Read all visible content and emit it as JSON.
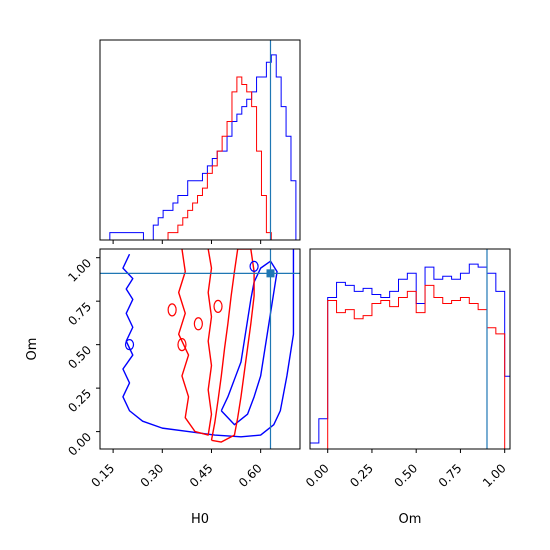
{
  "chart_data": [
    {
      "panel": "H0 marginal (top-left)",
      "type": "histogram-step",
      "xlim": [
        0.11,
        0.72
      ],
      "x_bin_centers": [
        0.25,
        0.265,
        0.28,
        0.295,
        0.31,
        0.325,
        0.34,
        0.355,
        0.37,
        0.385,
        0.4,
        0.415,
        0.43,
        0.445,
        0.46,
        0.475,
        0.49,
        0.505,
        0.52,
        0.535,
        0.55,
        0.565,
        0.58,
        0.595,
        0.61,
        0.625,
        0.64,
        0.655,
        0.67,
        0.685,
        0.7
      ],
      "series": [
        {
          "color": "#0000ff",
          "counts": [
            0,
            0,
            2,
            3,
            4,
            4,
            5,
            6,
            6,
            8,
            8,
            8,
            9,
            10,
            11,
            12,
            12,
            14,
            16,
            17,
            18,
            19,
            20,
            22,
            22,
            24,
            25,
            22,
            18,
            14,
            8
          ],
          "start_x": 0.14,
          "start_x_note": "blue histogram begins near 0.14 with small counts"
        },
        {
          "color": "#ff0000",
          "counts": [
            0,
            0,
            0,
            0,
            0,
            1,
            1,
            2,
            3,
            4,
            5,
            6,
            7,
            9,
            10,
            12,
            14,
            16,
            20,
            22,
            21,
            20,
            18,
            12,
            6,
            1,
            0,
            0,
            0,
            0,
            0
          ]
        }
      ],
      "truth_line": {
        "x": 0.63,
        "color": "#1f77b4"
      }
    },
    {
      "panel": "H0 vs Om joint (bottom-left)",
      "type": "contour",
      "xlim": [
        0.11,
        0.72
      ],
      "ylim": [
        -0.1,
        1.05
      ],
      "xticks": [
        "0.15",
        "0.30",
        "0.45",
        "0.60"
      ],
      "xtick_values": [
        0.15,
        0.3,
        0.45,
        0.6
      ],
      "yticks": [
        "0.00",
        "0.25",
        "0.50",
        "0.75",
        "1.00"
      ],
      "ytick_values": [
        0.0,
        0.25,
        0.5,
        0.75,
        1.0
      ],
      "xlabel": "H0",
      "ylabel": "Om",
      "truth_point": {
        "x": 0.63,
        "y": 0.91,
        "color": "#1f77b4"
      },
      "contours": [
        {
          "color": "#0000ff",
          "level": "outer",
          "points": [
            [
              0.2,
              1.02
            ],
            [
              0.18,
              0.94
            ],
            [
              0.21,
              0.88
            ],
            [
              0.19,
              0.82
            ],
            [
              0.21,
              0.76
            ],
            [
              0.19,
              0.68
            ],
            [
              0.21,
              0.6
            ],
            [
              0.19,
              0.52
            ],
            [
              0.21,
              0.44
            ],
            [
              0.18,
              0.36
            ],
            [
              0.2,
              0.28
            ],
            [
              0.18,
              0.2
            ],
            [
              0.2,
              0.12
            ],
            [
              0.24,
              0.06
            ],
            [
              0.3,
              0.02
            ],
            [
              0.38,
              0.0
            ],
            [
              0.46,
              -0.02
            ],
            [
              0.54,
              -0.03
            ],
            [
              0.6,
              -0.02
            ],
            [
              0.64,
              0.04
            ],
            [
              0.66,
              0.12
            ],
            [
              0.67,
              0.22
            ],
            [
              0.68,
              0.32
            ],
            [
              0.69,
              0.44
            ],
            [
              0.7,
              0.56
            ],
            [
              0.7,
              0.68
            ],
            [
              0.7,
              0.8
            ],
            [
              0.7,
              0.92
            ],
            [
              0.7,
              1.05
            ]
          ]
        },
        {
          "color": "#0000ff",
          "level": "inner",
          "points": [
            [
              0.48,
              0.12
            ],
            [
              0.5,
              0.2
            ],
            [
              0.52,
              0.3
            ],
            [
              0.54,
              0.4
            ],
            [
              0.55,
              0.52
            ],
            [
              0.56,
              0.64
            ],
            [
              0.57,
              0.76
            ],
            [
              0.58,
              0.86
            ],
            [
              0.6,
              0.94
            ],
            [
              0.63,
              0.98
            ],
            [
              0.65,
              0.92
            ],
            [
              0.64,
              0.8
            ],
            [
              0.63,
              0.68
            ],
            [
              0.62,
              0.56
            ],
            [
              0.61,
              0.44
            ],
            [
              0.6,
              0.32
            ],
            [
              0.58,
              0.2
            ],
            [
              0.56,
              0.1
            ],
            [
              0.52,
              0.04
            ],
            [
              0.48,
              0.12
            ]
          ]
        },
        {
          "color": "#ff0000",
          "level": "outer",
          "points": [
            [
              0.45,
              -0.05
            ],
            [
              0.46,
              0.05
            ],
            [
              0.47,
              0.18
            ],
            [
              0.48,
              0.32
            ],
            [
              0.49,
              0.48
            ],
            [
              0.5,
              0.62
            ],
            [
              0.51,
              0.78
            ],
            [
              0.52,
              0.92
            ],
            [
              0.53,
              1.05
            ],
            [
              0.57,
              1.05
            ],
            [
              0.58,
              0.92
            ],
            [
              0.58,
              0.78
            ],
            [
              0.57,
              0.62
            ],
            [
              0.56,
              0.48
            ],
            [
              0.55,
              0.34
            ],
            [
              0.54,
              0.2
            ],
            [
              0.53,
              0.08
            ],
            [
              0.52,
              -0.02
            ],
            [
              0.48,
              -0.06
            ],
            [
              0.45,
              -0.05
            ]
          ]
        },
        {
          "color": "#ff0000",
          "level": "inner",
          "points": [
            [
              0.36,
              1.05
            ],
            [
              0.37,
              0.92
            ],
            [
              0.35,
              0.8
            ],
            [
              0.37,
              0.68
            ],
            [
              0.35,
              0.56
            ],
            [
              0.38,
              0.44
            ],
            [
              0.36,
              0.32
            ],
            [
              0.38,
              0.2
            ],
            [
              0.37,
              0.08
            ],
            [
              0.4,
              0.0
            ],
            [
              0.44,
              -0.02
            ],
            [
              0.45,
              0.1
            ],
            [
              0.44,
              0.24
            ],
            [
              0.45,
              0.38
            ],
            [
              0.44,
              0.52
            ],
            [
              0.45,
              0.66
            ],
            [
              0.44,
              0.8
            ],
            [
              0.45,
              0.94
            ],
            [
              0.44,
              1.05
            ]
          ]
        }
      ]
    },
    {
      "panel": "Om marginal (bottom-right)",
      "type": "histogram-step",
      "xlim": [
        -0.1,
        1.03
      ],
      "xticks": [
        "0.00",
        "0.25",
        "0.50",
        "0.75",
        "1.00"
      ],
      "xtick_values": [
        0.0,
        0.25,
        0.5,
        0.75,
        1.0
      ],
      "xlabel": "Om",
      "x_bin_edges": [
        -0.1,
        -0.05,
        0.0,
        0.05,
        0.1,
        0.15,
        0.2,
        0.25,
        0.3,
        0.35,
        0.4,
        0.45,
        0.5,
        0.55,
        0.6,
        0.65,
        0.7,
        0.75,
        0.8,
        0.85,
        0.9,
        0.95,
        1.0,
        1.03
      ],
      "series": [
        {
          "color": "#0000ff",
          "counts": [
            2,
            10,
            50,
            55,
            54,
            52,
            53,
            51,
            50,
            52,
            56,
            58,
            48,
            60,
            56,
            57,
            56,
            58,
            61,
            60,
            58,
            52,
            24
          ]
        },
        {
          "color": "#ff0000",
          "counts": [
            0,
            0,
            49,
            45,
            46,
            43,
            44,
            48,
            49,
            47,
            50,
            52,
            45,
            54,
            50,
            48,
            49,
            50,
            48,
            46,
            40,
            38,
            0
          ]
        }
      ],
      "ylim": [
        0,
        66
      ],
      "truth_line": {
        "x": 0.9,
        "color": "#1f77b4"
      }
    }
  ]
}
